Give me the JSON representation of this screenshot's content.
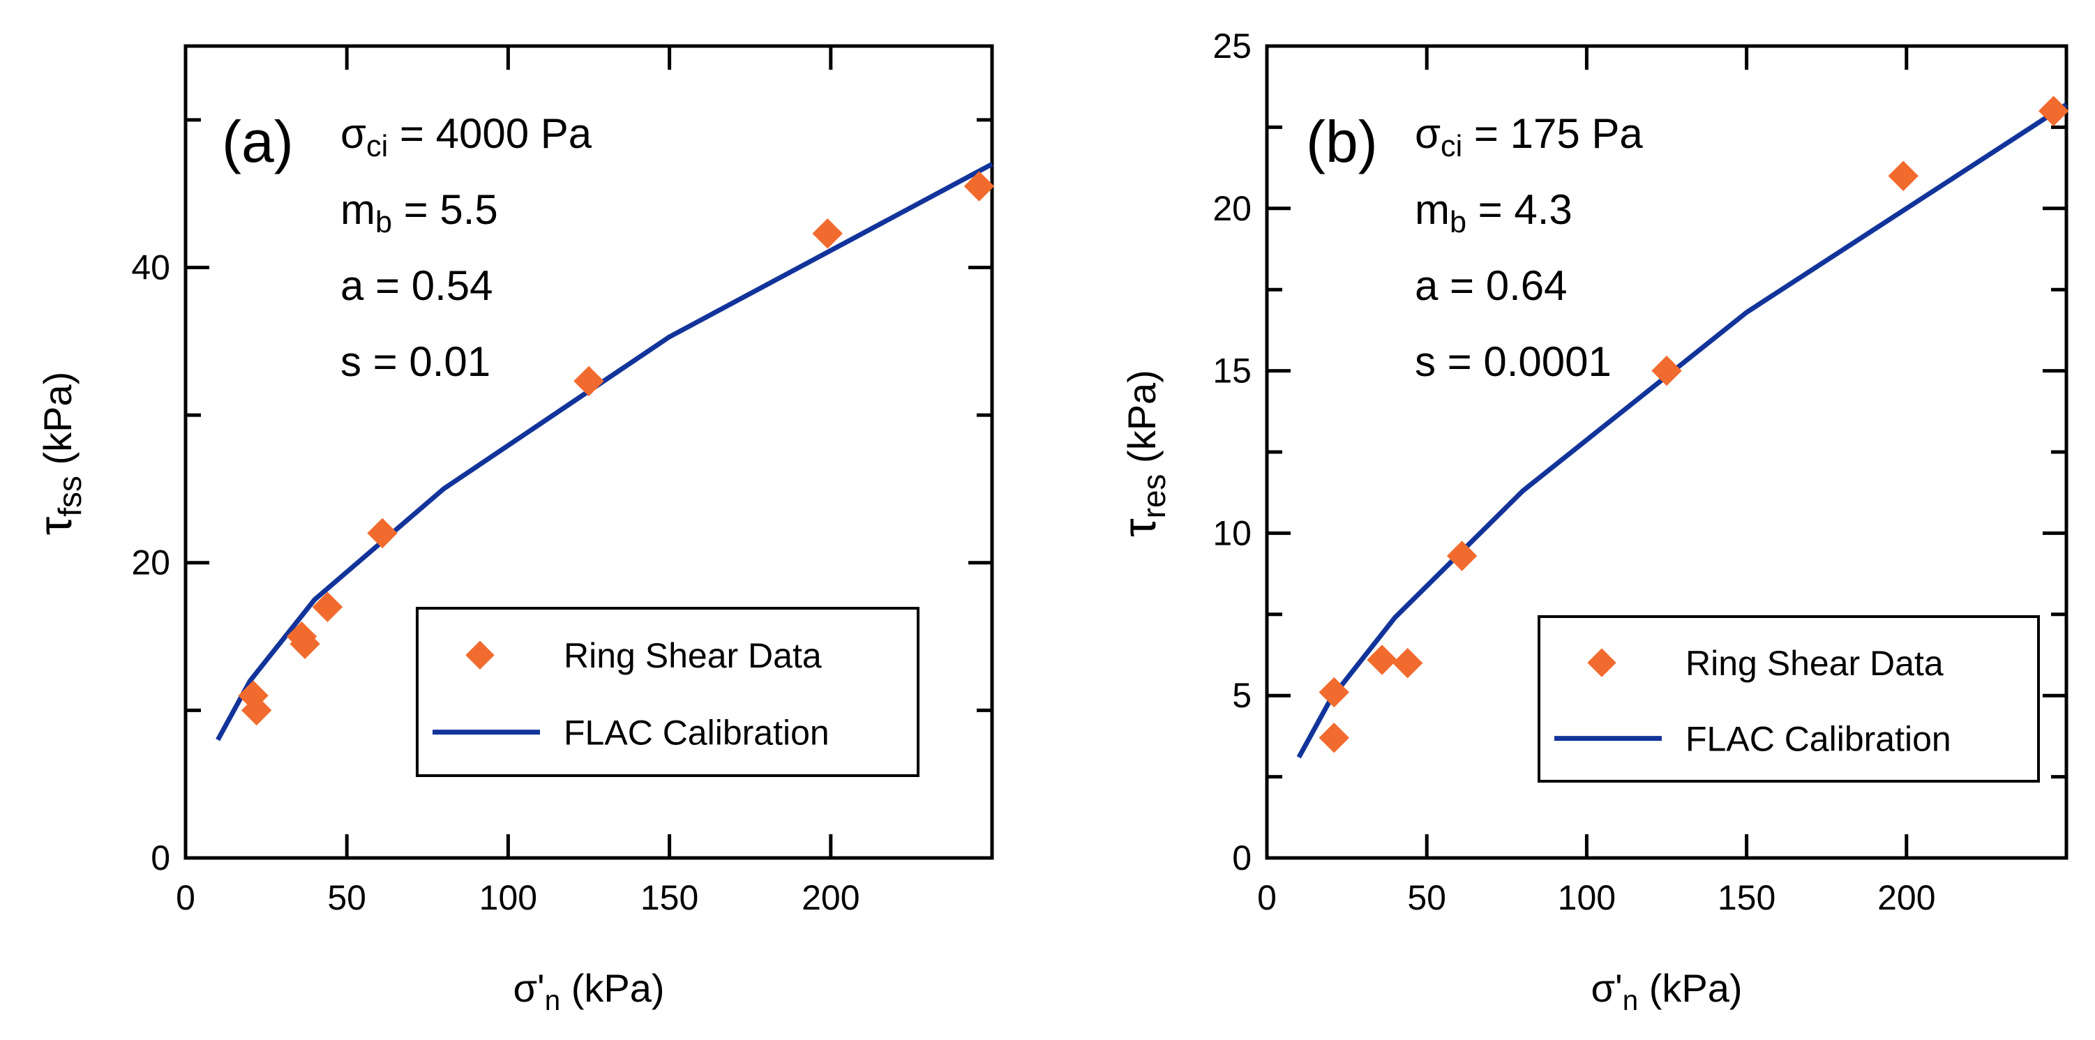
{
  "chart_data": [
    {
      "type": "scatter",
      "panel_label": "(a)",
      "parameters": {
        "sigma_ci": {
          "symbol": "σ",
          "sub": "ci",
          "value": " = 4000 Pa"
        },
        "m_b": {
          "symbol": "m",
          "sub": "b",
          "value": " = 5.5"
        },
        "a": "a = 0.54",
        "s": "s = 0.01"
      },
      "xlabel": {
        "main": "σ'",
        "sub": "n",
        "unit": " (kPa)"
      },
      "ylabel": {
        "main": "τ",
        "sub": "fss",
        "unit": " (kPa)"
      },
      "xlim": [
        0,
        250
      ],
      "ylim": [
        0,
        55
      ],
      "xticks": [
        0,
        50,
        100,
        150,
        200
      ],
      "xtick_labels": [
        "0",
        "50",
        "100",
        "150",
        "200"
      ],
      "yticks": [
        0,
        20,
        40
      ],
      "ytick_labels": [
        "0",
        "20",
        "40"
      ],
      "yminor": [
        10,
        30,
        50
      ],
      "legend_position": "bottom-right",
      "series": [
        {
          "name": "Ring Shear Data",
          "kind": "markers",
          "marker": "diamond",
          "color": "#F26B2E",
          "x": [
            21,
            22,
            36,
            37,
            44,
            61,
            125,
            199,
            246
          ],
          "y": [
            11,
            10,
            15,
            14.5,
            17,
            22,
            32.3,
            42.3,
            45.5
          ]
        },
        {
          "name": "FLAC Calibration",
          "kind": "line",
          "color": "#12349A",
          "x": [
            10,
            20,
            40,
            80,
            150,
            250
          ],
          "y": [
            8,
            12,
            17.5,
            25,
            35.3,
            47
          ]
        }
      ]
    },
    {
      "type": "scatter",
      "panel_label": "(b)",
      "parameters": {
        "sigma_ci": {
          "symbol": "σ",
          "sub": "ci",
          "value": " = 175 Pa"
        },
        "m_b": {
          "symbol": "m",
          "sub": "b",
          "value": " = 4.3"
        },
        "a": "a = 0.64",
        "s": "s = 0.0001"
      },
      "xlabel": {
        "main": "σ'",
        "sub": "n",
        "unit": " (kPa)"
      },
      "ylabel": {
        "main": "τ",
        "sub": "res",
        "unit": " (kPa)"
      },
      "xlim": [
        0,
        250
      ],
      "ylim": [
        0,
        25
      ],
      "xticks": [
        0,
        50,
        100,
        150,
        200
      ],
      "xtick_labels": [
        "0",
        "50",
        "100",
        "150",
        "200"
      ],
      "yticks": [
        0,
        5,
        10,
        15,
        20,
        25
      ],
      "ytick_labels": [
        "0",
        "5",
        "10",
        "15",
        "20",
        "25"
      ],
      "yminor": [
        2.5,
        7.5,
        12.5,
        17.5,
        22.5
      ],
      "legend_position": "bottom-right",
      "series": [
        {
          "name": "Ring Shear Data",
          "kind": "markers",
          "marker": "diamond",
          "color": "#F26B2E",
          "x": [
            21,
            21,
            36,
            44,
            61,
            125,
            199,
            246
          ],
          "y": [
            5.1,
            3.7,
            6.1,
            6,
            9.3,
            15,
            21,
            23
          ]
        },
        {
          "name": "FLAC Calibration",
          "kind": "line",
          "color": "#12349A",
          "x": [
            10,
            20,
            40,
            80,
            150,
            200,
            250
          ],
          "y": [
            3.1,
            4.9,
            7.4,
            11.3,
            16.8,
            20,
            23.2
          ]
        }
      ]
    }
  ]
}
